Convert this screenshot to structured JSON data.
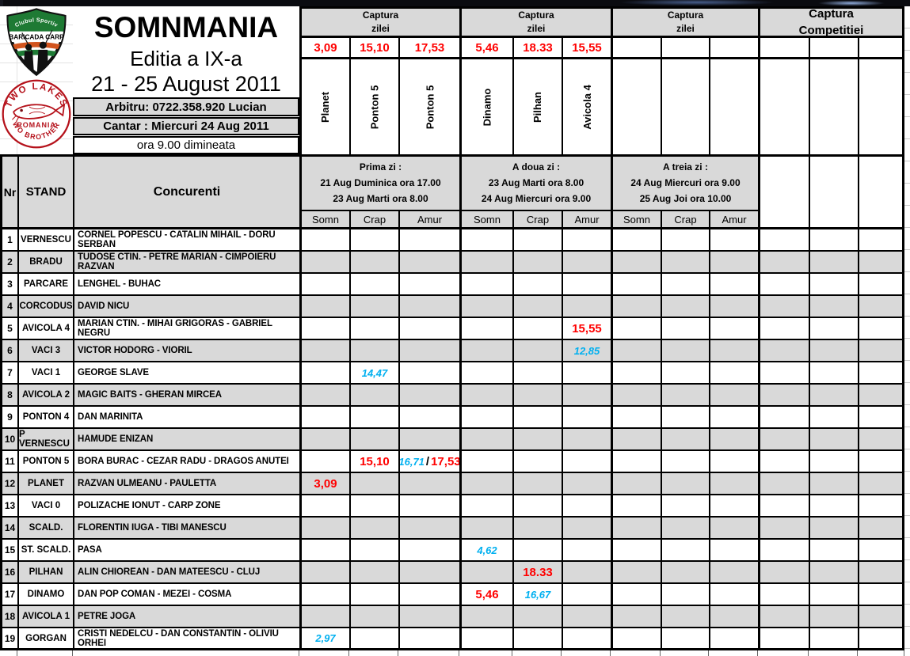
{
  "colors": {
    "accent_red": "#ff0000",
    "accent_blue": "#00b0f0",
    "header_gray": "#d9d9d9"
  },
  "logo": {
    "club_top": "Clubul Sportiv",
    "club_name": "BARICADA CARP",
    "arc_top": "TWO LAKES",
    "arc_bottom": "TWO BROTHERS",
    "country": "ROMANIA"
  },
  "header": {
    "title": "SOMNMANIA",
    "edition": "Editia a IX-a",
    "dates": "21 - 25 August 2011",
    "referee": "Arbitru:  0722.358.920 Lucian",
    "weigh_line1": "Cantar : Miercuri 24 Aug 2011",
    "weigh_line2": "ora 9.00 dimineata"
  },
  "groups": [
    {
      "title_line1": "Captura",
      "title_line2": "zilei",
      "best": [
        "3,09",
        "15,10",
        "17,53"
      ],
      "stands": [
        "Planet",
        "Ponton 5",
        "Ponton 5"
      ]
    },
    {
      "title_line1": "Captura",
      "title_line2": "zilei",
      "best": [
        "5,46",
        "18.33",
        "15,55"
      ],
      "stands": [
        "Dinamo",
        "Pilhan",
        "Avicola 4"
      ]
    },
    {
      "title_line1": "Captura",
      "title_line2": "zilei",
      "best": [
        "",
        "",
        ""
      ],
      "stands": [
        "",
        "",
        ""
      ]
    },
    {
      "title_line1": "Captura",
      "title_line2": "Competitiei",
      "best": [
        "",
        "",
        ""
      ],
      "stands": [
        "",
        "",
        ""
      ]
    }
  ],
  "table": {
    "nr_header": "Nr",
    "stand_header": "STAND",
    "concurenti_header": "Concurenti",
    "days": [
      {
        "l1": "Prima zi :",
        "l2": "21 Aug Duminica ora 17.00",
        "l3": "23 Aug Marti ora 8.00"
      },
      {
        "l1": "A doua zi :",
        "l2": "23 Aug Marti ora 8.00",
        "l3": "24 Aug Miercuri ora 9.00"
      },
      {
        "l1": "A treia zi :",
        "l2": "24 Aug Miercuri ora 9.00",
        "l3": "25 Aug Joi ora 10.00"
      }
    ],
    "species_headers": [
      "Somn",
      "Crap",
      "Amur"
    ],
    "rows": [
      {
        "nr": "1",
        "stand": "VERNESCU",
        "concurenti": "CORNEL POPESCU - CATALIN MIHAIL - DORU SERBAN",
        "v": {}
      },
      {
        "nr": "2",
        "stand": "BRADU",
        "concurenti": "TUDOSE CTIN. - PETRE MARIAN - CIMPOIERU RAZVAN",
        "v": {}
      },
      {
        "nr": "3",
        "stand": "PARCARE",
        "concurenti": "LENGHEL - BUHAC",
        "v": {}
      },
      {
        "nr": "4",
        "stand": "CORCODUS",
        "concurenti": "DAVID NICU",
        "v": {}
      },
      {
        "nr": "5",
        "stand": "AVICOLA 4",
        "concurenti": "MARIAN CTIN. - MIHAI GRIGORAS - GABRIEL NEGRU",
        "v": {
          "5": {
            "text": "15,55",
            "style": "red"
          }
        }
      },
      {
        "nr": "6",
        "stand": "VACI 3",
        "concurenti": "VICTOR HODORG - VIORIL",
        "v": {
          "5": {
            "text": "12,85",
            "style": "blue"
          }
        }
      },
      {
        "nr": "7",
        "stand": "VACI 1",
        "concurenti": "GEORGE SLAVE",
        "v": {
          "1": {
            "text": "14,47",
            "style": "blue"
          }
        }
      },
      {
        "nr": "8",
        "stand": "AVICOLA 2",
        "concurenti": "MAGIC BAITS - GHERAN MIRCEA",
        "v": {}
      },
      {
        "nr": "9",
        "stand": "PONTON 4",
        "concurenti": "DAN MARINITA",
        "v": {}
      },
      {
        "nr": "10",
        "stand": "P VERNESCU",
        "concurenti": "HAMUDE ENIZAN",
        "v": {}
      },
      {
        "nr": "11",
        "stand": "PONTON 5",
        "concurenti": "BORA BURAC - CEZAR RADU - DRAGOS ANUTEI",
        "v": {
          "1": {
            "text": "15,10",
            "style": "red"
          },
          "2": {
            "parts": [
              {
                "text": "16,71",
                "style": "blue"
              },
              {
                "text": "/",
                "style": "slash"
              },
              {
                "text": "17,53",
                "style": "red"
              }
            ]
          }
        }
      },
      {
        "nr": "12",
        "stand": "PLANET",
        "concurenti": "RAZVAN ULMEANU - PAULETTA",
        "v": {
          "0": {
            "text": "3,09",
            "style": "red"
          }
        }
      },
      {
        "nr": "13",
        "stand": "VACI 0",
        "concurenti": "POLIZACHE IONUT - CARP ZONE",
        "v": {}
      },
      {
        "nr": "14",
        "stand": "SCALD.",
        "concurenti": "FLORENTIN IUGA - TIBI MANESCU",
        "v": {}
      },
      {
        "nr": "15",
        "stand": "ST. SCALD.",
        "concurenti": "PASA",
        "v": {
          "3": {
            "text": "4,62",
            "style": "blue"
          }
        }
      },
      {
        "nr": "16",
        "stand": "PILHAN",
        "concurenti": "ALIN CHIOREAN - DAN MATEESCU - CLUJ",
        "v": {
          "4": {
            "text": "18.33",
            "style": "red"
          }
        }
      },
      {
        "nr": "17",
        "stand": "DINAMO",
        "concurenti": "DAN POP COMAN - MEZEI - COSMA",
        "v": {
          "3": {
            "text": "5,46",
            "style": "red"
          },
          "4": {
            "text": "16,67",
            "style": "blue"
          }
        }
      },
      {
        "nr": "18",
        "stand": "AVICOLA 1",
        "concurenti": "PETRE JOGA",
        "v": {}
      },
      {
        "nr": "19",
        "stand": "GORGAN",
        "concurenti": "CRISTI NEDELCU - DAN CONSTANTIN - OLIVIU ORHEI",
        "v": {
          "0": {
            "text": "2,97",
            "style": "blue"
          }
        }
      }
    ]
  }
}
